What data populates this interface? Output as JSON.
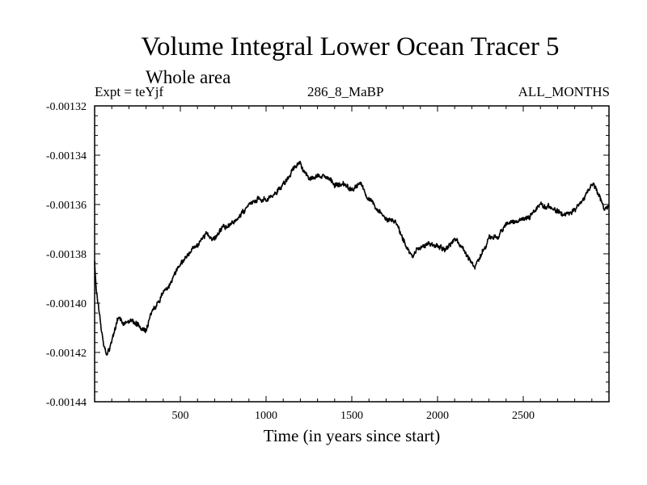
{
  "chart_data": {
    "type": "line",
    "title": "Volume Integral Lower Ocean Tracer 5",
    "subtitle": "Whole area",
    "experiment": "Expt = teYjf",
    "period": "286_8_MaBP",
    "months": "ALL_MONTHS",
    "xlabel": "Time (in years since start)",
    "ylabel": "",
    "xlim": [
      0,
      3000
    ],
    "ylim": [
      -0.00144,
      -0.00132
    ],
    "x_ticks": [
      500,
      1000,
      1500,
      2000,
      2500
    ],
    "x_tick_labels": [
      "500",
      "1000",
      "1500",
      "2000",
      "2500"
    ],
    "y_ticks": [
      -0.00132,
      -0.00134,
      -0.00136,
      -0.00138,
      -0.0014,
      -0.00142,
      -0.00144
    ],
    "y_tick_labels": [
      "-0.00132",
      "-0.00134",
      "-0.00136",
      "-0.00138",
      "-0.00140",
      "-0.00142",
      "-0.00144"
    ],
    "grid": false,
    "series": [
      {
        "name": "Lower Ocean Tracer 5",
        "x": [
          0,
          10,
          25,
          40,
          55,
          70,
          90,
          110,
          140,
          175,
          210,
          250,
          285,
          300,
          330,
          360,
          400,
          450,
          500,
          550,
          600,
          650,
          700,
          750,
          800,
          850,
          900,
          950,
          1000,
          1050,
          1100,
          1150,
          1180,
          1200,
          1250,
          1300,
          1350,
          1400,
          1450,
          1500,
          1550,
          1600,
          1650,
          1700,
          1750,
          1800,
          1850,
          1880,
          1900,
          1950,
          2000,
          2050,
          2100,
          2150,
          2200,
          2220,
          2250,
          2300,
          2350,
          2400,
          2450,
          2500,
          2550,
          2600,
          2650,
          2700,
          2750,
          2800,
          2850,
          2900,
          2920,
          2950,
          2970,
          3000
        ],
        "y": [
          -0.001383,
          -0.001395,
          -0.001403,
          -0.001412,
          -0.001418,
          -0.001421,
          -0.001418,
          -0.001412,
          -0.001405,
          -0.001409,
          -0.001407,
          -0.001409,
          -0.00141,
          -0.001411,
          -0.001404,
          -0.001401,
          -0.001396,
          -0.001391,
          -0.001385,
          -0.00138,
          -0.001376,
          -0.001372,
          -0.001374,
          -0.001369,
          -0.001368,
          -0.001364,
          -0.00136,
          -0.001358,
          -0.001358,
          -0.001356,
          -0.001352,
          -0.001347,
          -0.001344,
          -0.001343,
          -0.00135,
          -0.001348,
          -0.001349,
          -0.001352,
          -0.001352,
          -0.001354,
          -0.001351,
          -0.001358,
          -0.001362,
          -0.001365,
          -0.001367,
          -0.001374,
          -0.001381,
          -0.001378,
          -0.001377,
          -0.001376,
          -0.001377,
          -0.001378,
          -0.001374,
          -0.001378,
          -0.001384,
          -0.001386,
          -0.001381,
          -0.001374,
          -0.001373,
          -0.001368,
          -0.001367,
          -0.001366,
          -0.001364,
          -0.00136,
          -0.001361,
          -0.001363,
          -0.001364,
          -0.001362,
          -0.001358,
          -0.001352,
          -0.001353,
          -0.001358,
          -0.001362,
          -0.001361
        ]
      }
    ]
  }
}
